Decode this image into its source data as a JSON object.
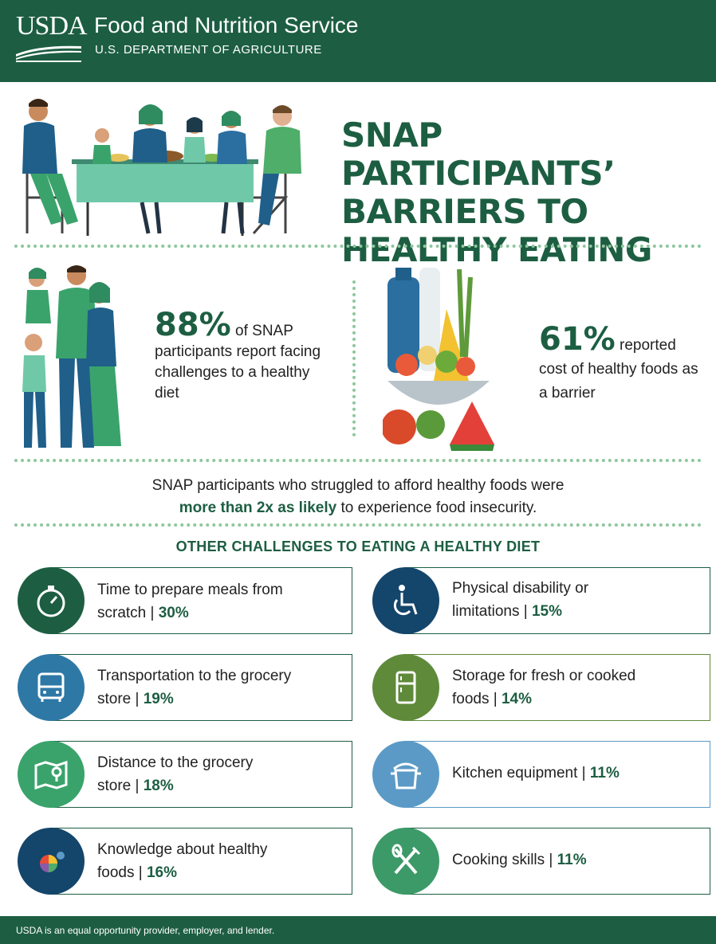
{
  "header": {
    "logo_text": "USDA",
    "agency": "Food and Nutrition Service",
    "department": "U.S. DEPARTMENT OF AGRICULTURE"
  },
  "title": {
    "line1": "SNAP PARTICIPANTS’",
    "line2": "BARRIERS TO",
    "line3": "HEALTHY EATING"
  },
  "stat_challenges": {
    "value": "88%",
    "text_inline": " of SNAP",
    "text_rest": "participants report facing challenges to a healthy diet"
  },
  "stat_cost": {
    "value": "61%",
    "text_inline": " reported",
    "text_rest": "cost of healthy foods as a barrier"
  },
  "insight": {
    "line1": "SNAP participants who struggled to afford healthy foods were",
    "emphasis": "more than 2x as likely",
    "line2_rest": " to experience food insecurity."
  },
  "challenges_title": "OTHER CHALLENGES TO EATING A HEALTHY DIET",
  "challenges": [
    {
      "line1": "Time to prepare meals from",
      "line2": "scratch | ",
      "pct": "30%",
      "icon": "stopwatch-icon",
      "color": "#1d5e42"
    },
    {
      "line1": "Physical disability or",
      "line2": "limitations | ",
      "pct": "15%",
      "icon": "wheelchair-icon",
      "color": "#14456b"
    },
    {
      "line1": "Transportation to the grocery",
      "line2": "store | ",
      "pct": "19%",
      "icon": "bus-icon",
      "color": "#2e78a6"
    },
    {
      "line1": "Storage for fresh or cooked",
      "line2": "foods | ",
      "pct": "14%",
      "icon": "refrigerator-icon",
      "color": "#5e8a3a"
    },
    {
      "line1": "Distance to the grocery",
      "line2": "store | ",
      "pct": "18%",
      "icon": "map-icon",
      "color": "#3aa36b"
    },
    {
      "line1": "Kitchen equipment | ",
      "line2": "",
      "pct": "11%",
      "icon": "cooking-pot-icon",
      "color": "#5b9ac6"
    },
    {
      "line1": "Knowledge about healthy",
      "line2": "foods | ",
      "pct": "16%",
      "icon": "plate-icon",
      "color": "#14456b"
    },
    {
      "line1": "Cooking skills | ",
      "line2": "",
      "pct": "11%",
      "icon": "fork-knife-icon",
      "color": "#3c9a68"
    }
  ],
  "footer": "USDA is an equal opportunity provider, employer, and lender."
}
